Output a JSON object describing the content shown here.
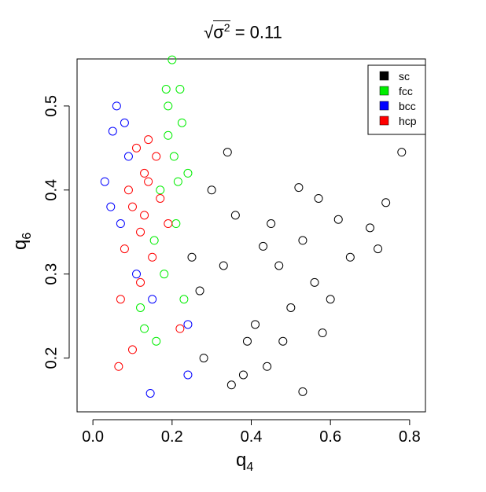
{
  "chart_data": {
    "type": "scatter",
    "title": {
      "prefix": "σ",
      "power": "2",
      "text": " = 0.11"
    },
    "xlabel": {
      "base": "q",
      "sub": "4"
    },
    "ylabel": {
      "base": "q",
      "sub": "6"
    },
    "xlim": [
      -0.04,
      0.84
    ],
    "ylim": [
      0.136,
      0.556
    ],
    "xticks": [
      "0.0",
      "0.2",
      "0.4",
      "0.6",
      "0.8"
    ],
    "yticks": [
      "0.2",
      "0.3",
      "0.4",
      "0.5"
    ],
    "legend_position": "top-right",
    "series": [
      {
        "name": "sc",
        "color": "#000000"
      },
      {
        "name": "fcc",
        "color": "#00ee00"
      },
      {
        "name": "bcc",
        "color": "#0000ff"
      },
      {
        "name": "hcp",
        "color": "#ff0000"
      }
    ],
    "points": [
      [
        0.34,
        0.445,
        0
      ],
      [
        0.43,
        0.333,
        0
      ],
      [
        0.52,
        0.403,
        0
      ],
      [
        0.7,
        0.355,
        0
      ],
      [
        0.74,
        0.385,
        0
      ],
      [
        0.53,
        0.16,
        0
      ],
      [
        0.38,
        0.18,
        0
      ],
      [
        0.28,
        0.2,
        0
      ],
      [
        0.35,
        0.168,
        0
      ],
      [
        0.78,
        0.445,
        0
      ],
      [
        0.3,
        0.4,
        0
      ],
      [
        0.62,
        0.365,
        0
      ],
      [
        0.45,
        0.36,
        0
      ],
      [
        0.5,
        0.26,
        0
      ],
      [
        0.47,
        0.31,
        0
      ],
      [
        0.41,
        0.24,
        0
      ],
      [
        0.56,
        0.29,
        0
      ],
      [
        0.33,
        0.31,
        0
      ],
      [
        0.39,
        0.22,
        0
      ],
      [
        0.6,
        0.27,
        0
      ],
      [
        0.27,
        0.28,
        0
      ],
      [
        0.44,
        0.19,
        0
      ],
      [
        0.53,
        0.34,
        0
      ],
      [
        0.65,
        0.32,
        0
      ],
      [
        0.72,
        0.33,
        0
      ],
      [
        0.58,
        0.23,
        0
      ],
      [
        0.36,
        0.37,
        0
      ],
      [
        0.48,
        0.22,
        0
      ],
      [
        0.25,
        0.32,
        0
      ],
      [
        0.57,
        0.39,
        0
      ],
      [
        0.2,
        0.555,
        1
      ],
      [
        0.22,
        0.52,
        1
      ],
      [
        0.19,
        0.465,
        1
      ],
      [
        0.18,
        0.3,
        1
      ],
      [
        0.16,
        0.22,
        1
      ],
      [
        0.13,
        0.235,
        1
      ],
      [
        0.24,
        0.42,
        1
      ],
      [
        0.21,
        0.36,
        1
      ],
      [
        0.23,
        0.27,
        1
      ],
      [
        0.19,
        0.5,
        1
      ],
      [
        0.205,
        0.44,
        1
      ],
      [
        0.17,
        0.4,
        1
      ],
      [
        0.155,
        0.34,
        1
      ],
      [
        0.12,
        0.26,
        1
      ],
      [
        0.225,
        0.48,
        1
      ],
      [
        0.185,
        0.52,
        1
      ],
      [
        0.215,
        0.41,
        1
      ],
      [
        0.145,
        0.158,
        2
      ],
      [
        0.24,
        0.18,
        2
      ],
      [
        0.05,
        0.47,
        2
      ],
      [
        0.03,
        0.41,
        2
      ],
      [
        0.24,
        0.24,
        2
      ],
      [
        0.06,
        0.5,
        2
      ],
      [
        0.09,
        0.44,
        2
      ],
      [
        0.07,
        0.36,
        2
      ],
      [
        0.11,
        0.3,
        2
      ],
      [
        0.15,
        0.27,
        2
      ],
      [
        0.045,
        0.38,
        2
      ],
      [
        0.08,
        0.48,
        2
      ],
      [
        0.065,
        0.19,
        3
      ],
      [
        0.22,
        0.235,
        3
      ],
      [
        0.1,
        0.21,
        3
      ],
      [
        0.12,
        0.35,
        3
      ],
      [
        0.14,
        0.41,
        3
      ],
      [
        0.09,
        0.4,
        3
      ],
      [
        0.13,
        0.37,
        3
      ],
      [
        0.16,
        0.44,
        3
      ],
      [
        0.11,
        0.45,
        3
      ],
      [
        0.15,
        0.32,
        3
      ],
      [
        0.08,
        0.33,
        3
      ],
      [
        0.17,
        0.39,
        3
      ],
      [
        0.12,
        0.29,
        3
      ],
      [
        0.1,
        0.38,
        3
      ],
      [
        0.14,
        0.46,
        3
      ],
      [
        0.07,
        0.27,
        3
      ],
      [
        0.19,
        0.36,
        3
      ],
      [
        0.13,
        0.42,
        3
      ]
    ]
  }
}
